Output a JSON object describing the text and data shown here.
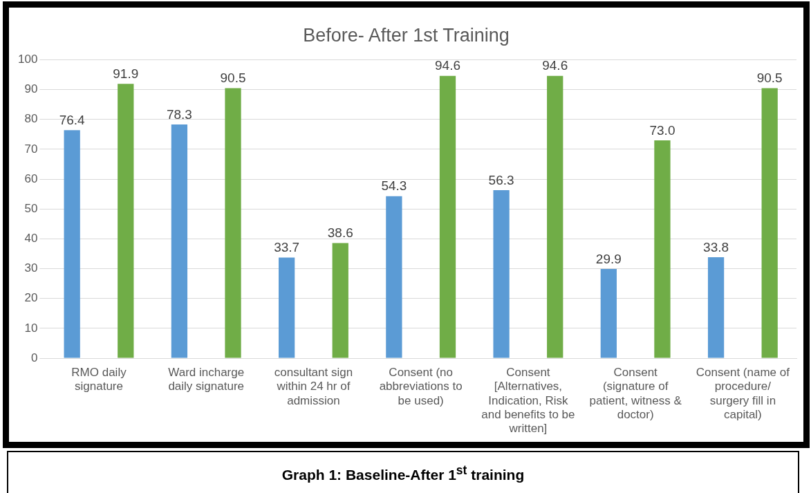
{
  "chart_data": {
    "type": "bar",
    "title": "Before- After 1st Training",
    "categories": [
      "RMO daily signature",
      "Ward incharge daily signature",
      "consultant sign within 24 hr of admission",
      "Consent (no abbreviations to be used)",
      "Consent [Alternatives, Indication, Risk and benefits to be written]",
      "Consent (signature of patient, witness & doctor)",
      "Consent (name of procedure/ surgery fill in capital)"
    ],
    "series": [
      {
        "color": "#5b9bd5",
        "values": [
          76.4,
          78.3,
          33.7,
          54.3,
          56.3,
          29.9,
          33.8
        ],
        "value_labels": [
          "76.4",
          "78.3",
          "33.7",
          "54.3",
          "56.3",
          "29.9",
          "33.8"
        ]
      },
      {
        "color": "#70ad47",
        "values": [
          91.9,
          90.5,
          38.6,
          94.6,
          94.6,
          73.0,
          90.5
        ],
        "value_labels": [
          "91.9",
          "90.5",
          "38.6",
          "94.6",
          "94.6",
          "73.0",
          "90.5"
        ]
      }
    ],
    "ylim": [
      0,
      100
    ],
    "yticks": [
      0,
      10,
      20,
      30,
      40,
      50,
      60,
      70,
      80,
      90,
      100
    ],
    "grid": "y",
    "legend": false,
    "annotations": [
      "Graph 1: Baseline-After 1$^{st}$ training"
    ]
  }
}
